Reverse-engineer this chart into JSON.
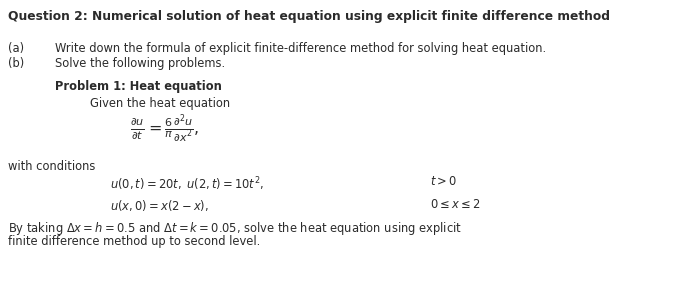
{
  "title": "Question 2: Numerical solution of heat equation using explicit finite difference method",
  "a_label": "(a)",
  "a_text": "Write down the formula of explicit finite-difference method for solving heat equation.",
  "b_label": "(b)",
  "b_text": "Solve the following problems.",
  "prob_header": "Problem 1: Heat equation",
  "given_text": "Given the heat equation",
  "pde": "$\\frac{\\partial u}{\\partial t} = \\frac{6}{\\pi}\\frac{\\partial^2 u}{\\partial x^2},$",
  "with_cond": "with conditions",
  "cond1": "$u(0,t) = 20t, \\; u(2,t) = 10t^2,$",
  "cond1_right": "$t > 0$",
  "cond2": "$u(x,0) = x(2-x),$",
  "cond2_right": "$0 \\leq x \\leq 2$",
  "last_line1": "By taking $\\Delta x = h = 0.5$ and $\\Delta t = k = 0.05$, solve the heat equation using explicit",
  "last_line2": "finite difference method up to second level.",
  "bg_color": "#ffffff",
  "text_color": "#2b2b2b",
  "figsize": [
    7.0,
    2.99
  ],
  "dpi": 100,
  "fs_title": 8.8,
  "fs_body": 8.3,
  "fs_math": 8.3,
  "fs_pde": 11.5
}
